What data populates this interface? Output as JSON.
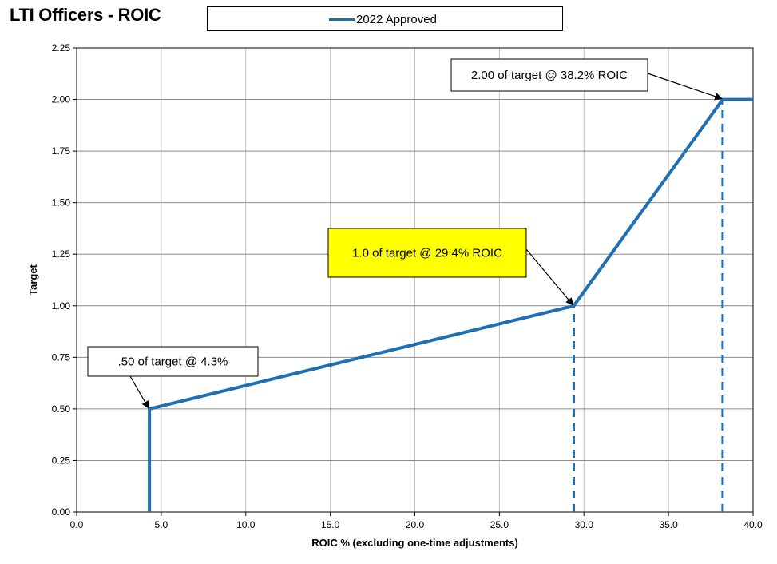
{
  "chart_data": {
    "type": "line",
    "title": "LTI Officers - ROIC",
    "xlabel": "ROIC % (excluding one-time adjustments)",
    "ylabel": "Target",
    "xlim": [
      0,
      40
    ],
    "ylim": [
      0,
      2.25
    ],
    "x_ticks": [
      "0.0",
      "5.0",
      "10.0",
      "15.0",
      "20.0",
      "25.0",
      "30.0",
      "35.0",
      "40.0"
    ],
    "y_ticks": [
      "0.00",
      "0.25",
      "0.50",
      "0.75",
      "1.00",
      "1.25",
      "1.50",
      "1.75",
      "2.00",
      "2.25"
    ],
    "grid": true,
    "legend_position": "top",
    "series": [
      {
        "name": "2022 Approved",
        "color": "#1F6FB5",
        "points": [
          [
            4.3,
            0.0
          ],
          [
            4.3,
            0.5
          ],
          [
            29.4,
            1.0
          ],
          [
            38.2,
            2.0
          ],
          [
            40.0,
            2.0
          ]
        ]
      }
    ],
    "reference_lines": [
      {
        "x": 29.4,
        "y_from": 0,
        "y_to": 1.0,
        "style": "dashed"
      },
      {
        "x": 38.2,
        "y_from": 0,
        "y_to": 2.0,
        "style": "dashed"
      }
    ],
    "annotations": [
      {
        "text": ".50 of target @ 4.3%",
        "target": [
          4.3,
          0.5
        ],
        "background": "#ffffff"
      },
      {
        "text": "1.0 of target @ 29.4% ROIC",
        "target": [
          29.4,
          1.0
        ],
        "background": "#FFFF00"
      },
      {
        "text": "2.00 of target @ 38.2% ROIC",
        "target": [
          38.2,
          2.0
        ],
        "background": "#ffffff"
      }
    ]
  }
}
